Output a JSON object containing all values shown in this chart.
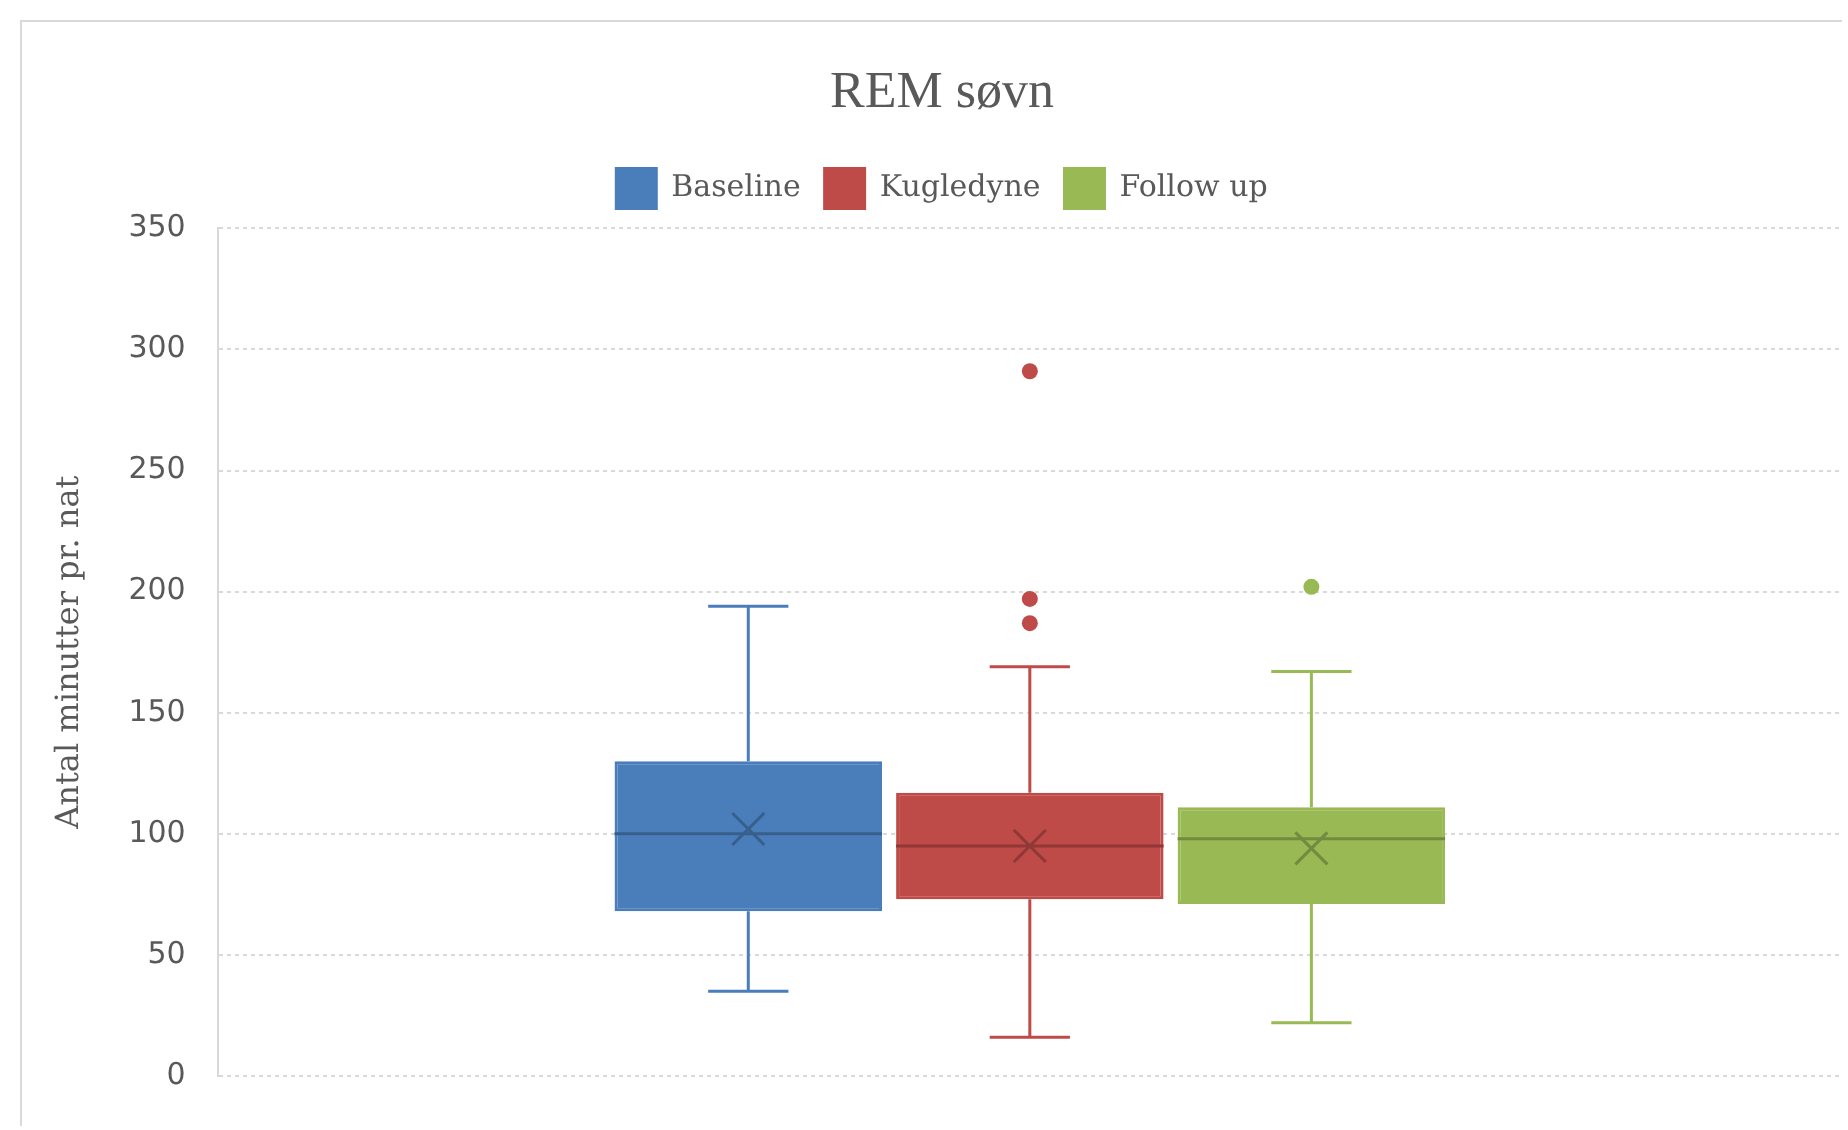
{
  "chart_data": {
    "type": "box",
    "title": "REM søvn",
    "ylabel": "Antal minutter pr. nat",
    "categories": [
      null
    ],
    "series": [
      {
        "name": "Baseline",
        "color": "#4a7ebb",
        "boxes": [
          {
            "low": 35,
            "q1": 68,
            "median": 100,
            "q3": 130,
            "high": 194,
            "mean": 102
          }
        ]
      },
      {
        "name": "Kugledyne",
        "color": "#be4b48",
        "boxes": [
          {
            "low": 16,
            "q1": 73,
            "median": 95,
            "q3": 117,
            "high": 169,
            "mean": 95,
            "outliers": [
              291,
              197,
              187
            ]
          }
        ]
      },
      {
        "name": "Follow up",
        "color": "#98b954",
        "boxes": [
          {
            "low": 22,
            "q1": 71,
            "median": 98,
            "q3": 111,
            "high": 167,
            "mean": 94,
            "outliers": [
              202
            ]
          }
        ]
      }
    ],
    "ylim": [
      0,
      350
    ],
    "yticks": [
      0,
      50,
      100,
      150,
      200,
      250,
      300,
      350
    ],
    "grid": "y",
    "legend": "top",
    "marker": "cross"
  }
}
